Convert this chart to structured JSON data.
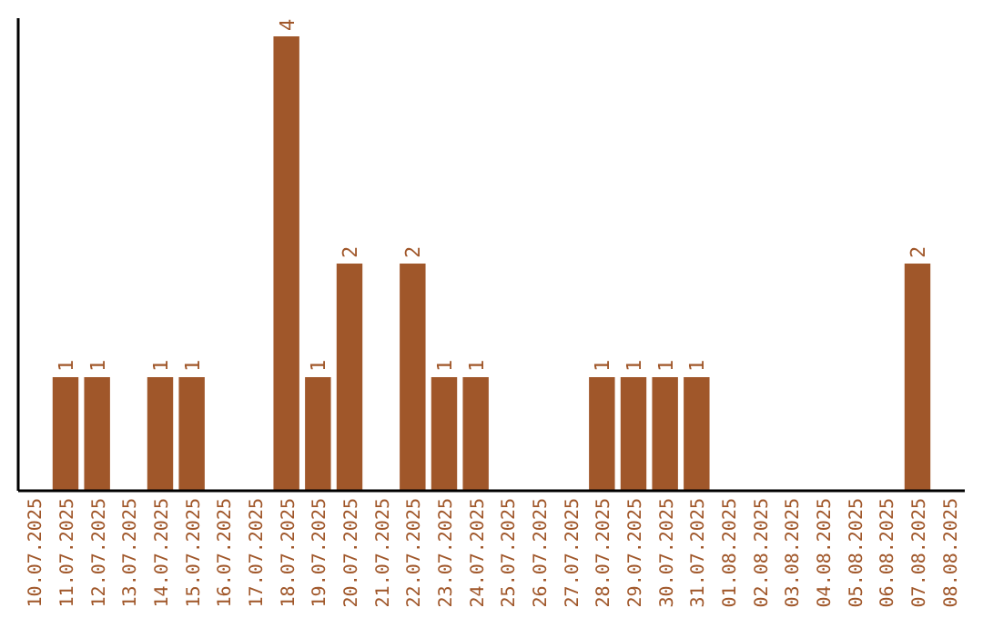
{
  "chart_data": {
    "type": "bar",
    "categories": [
      "10.07.2025",
      "11.07.2025",
      "12.07.2025",
      "13.07.2025",
      "14.07.2025",
      "15.07.2025",
      "16.07.2025",
      "17.07.2025",
      "18.07.2025",
      "19.07.2025",
      "20.07.2025",
      "21.07.2025",
      "22.07.2025",
      "23.07.2025",
      "24.07.2025",
      "25.07.2025",
      "26.07.2025",
      "27.07.2025",
      "28.07.2025",
      "29.07.2025",
      "30.07.2025",
      "31.07.2025",
      "01.08.2025",
      "02.08.2025",
      "03.08.2025",
      "04.08.2025",
      "05.08.2025",
      "06.08.2025",
      "07.08.2025",
      "08.08.2025"
    ],
    "values": [
      0,
      1,
      1,
      0,
      1,
      1,
      0,
      0,
      4,
      1,
      2,
      0,
      2,
      1,
      1,
      0,
      0,
      0,
      1,
      1,
      1,
      1,
      0,
      0,
      0,
      0,
      0,
      0,
      2,
      0
    ],
    "value_labels": [
      null,
      "1",
      "1",
      null,
      "1",
      "1",
      null,
      null,
      "4",
      "1",
      "2",
      null,
      "2",
      "1",
      "1",
      null,
      null,
      null,
      "1",
      "1",
      "1",
      "1",
      null,
      null,
      null,
      null,
      null,
      null,
      "2",
      null
    ],
    "color": "#a0572a",
    "ylim": [
      0,
      4.16
    ],
    "tick_labels": "x"
  }
}
